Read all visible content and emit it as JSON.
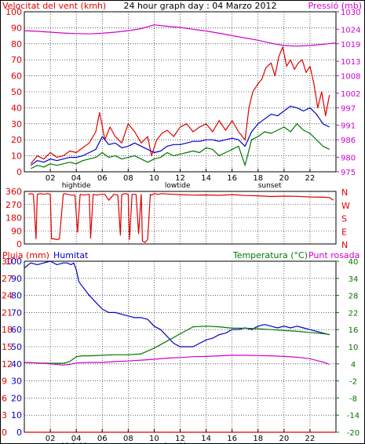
{
  "page": {
    "title": "24 hour graph day : 04 Marzo 2012"
  },
  "colors": {
    "wind": "#e00000",
    "windavg": "#0000c8",
    "windlow": "#007800",
    "pressure": "#d000d0",
    "grid": "#000000",
    "axis_left": "#e00000",
    "dir": "#e00000",
    "hum": "#0000c8",
    "temp": "#007800",
    "dew": "#d000d0",
    "rain": "#e00000"
  },
  "chart_data": [
    {
      "type": "line",
      "title": "24 hour graph day : 04 Marzo 2012",
      "ylabel_left": "Velocitat del vent (kmh)",
      "ylabel_right": "Pressió (mb)",
      "ylim_left": [
        0,
        100
      ],
      "yticks_left": [
        0,
        10,
        20,
        30,
        40,
        50,
        60,
        70,
        80,
        90,
        100
      ],
      "ylim_right": [
        975,
        1030
      ],
      "yticks_right": [
        975,
        980,
        986,
        991,
        997,
        1002,
        1008,
        1013,
        1019,
        1024,
        1030
      ],
      "xlim": [
        0,
        24
      ],
      "xticks": [
        "02",
        "04",
        "06",
        "08",
        "10",
        "12",
        "14",
        "16",
        "18",
        "20",
        "22"
      ],
      "xtick_positions": [
        2,
        4,
        6,
        8,
        10,
        12,
        14,
        16,
        18,
        20,
        22
      ],
      "x_annotations": [
        {
          "label": "hightide",
          "x": 4
        },
        {
          "label": "lowtide",
          "x": 11.8
        },
        {
          "label": "sunset",
          "x": 18.9
        }
      ],
      "series": [
        {
          "key": "wind",
          "x": [
            0.5,
            1,
            1.5,
            2,
            2.5,
            3,
            3.5,
            4,
            4.5,
            5,
            5.5,
            5.8,
            6.2,
            6.6,
            7,
            7.5,
            8,
            8.5,
            9,
            9.5,
            9.8,
            10.2,
            10.6,
            11,
            11.5,
            12,
            12.5,
            13,
            13.5,
            14,
            14.5,
            15,
            15.5,
            16,
            16.5,
            17,
            17.3,
            17.6,
            18,
            18.3,
            18.6,
            19,
            19.3,
            19.6,
            19.9,
            20.2,
            20.5,
            20.8,
            21.1,
            21.4,
            21.7,
            22,
            22.3,
            22.6,
            22.9,
            23.2,
            23.5
          ],
          "values": [
            5,
            10,
            8,
            12,
            9,
            10,
            13,
            12,
            15,
            18,
            25,
            37,
            20,
            28,
            22,
            18,
            30,
            25,
            18,
            22,
            10,
            20,
            24,
            26,
            22,
            28,
            30,
            25,
            28,
            30,
            25,
            32,
            26,
            32,
            25,
            20,
            40,
            50,
            55,
            58,
            65,
            68,
            60,
            72,
            78,
            66,
            70,
            64,
            68,
            70,
            62,
            66,
            55,
            40,
            50,
            35,
            48
          ]
        },
        {
          "key": "windavg",
          "x": [
            0.5,
            1,
            1.5,
            2,
            2.5,
            3,
            3.5,
            4,
            4.5,
            5,
            5.5,
            6,
            6.5,
            7,
            7.5,
            8,
            8.5,
            9,
            9.5,
            10,
            10.5,
            11,
            11.5,
            12,
            12.5,
            13,
            13.5,
            14,
            14.5,
            15,
            15.5,
            16,
            16.5,
            17,
            17.5,
            18,
            18.5,
            19,
            19.5,
            20,
            20.5,
            21,
            21.5,
            22,
            22.5,
            23,
            23.5
          ],
          "values": [
            4,
            7,
            6,
            8,
            7,
            8,
            9,
            9,
            10,
            12,
            14,
            22,
            17,
            18,
            15,
            16,
            18,
            16,
            14,
            12,
            13,
            16,
            17,
            17,
            18,
            19,
            19,
            20,
            20,
            19,
            20,
            21,
            20,
            16,
            25,
            30,
            33,
            36,
            35,
            38,
            41,
            40,
            38,
            40,
            36,
            30,
            28
          ]
        },
        {
          "key": "windlow",
          "x": [
            0.5,
            1,
            1.5,
            2,
            2.5,
            3,
            3.5,
            4,
            4.5,
            5,
            5.5,
            6,
            6.5,
            7,
            7.5,
            8,
            8.5,
            9,
            9.5,
            10,
            10.5,
            11,
            11.5,
            12,
            12.5,
            13,
            13.5,
            14,
            14.5,
            15,
            15.5,
            16,
            16.5,
            17,
            17.5,
            18,
            18.5,
            19,
            19.5,
            20,
            20.5,
            21,
            21.5,
            22,
            22.5,
            23,
            23.5
          ],
          "values": [
            2,
            4,
            3,
            5,
            4,
            5,
            6,
            5,
            7,
            8,
            9,
            12,
            9,
            10,
            8,
            9,
            10,
            8,
            6,
            8,
            9,
            12,
            10,
            11,
            12,
            13,
            12,
            15,
            14,
            10,
            12,
            14,
            16,
            4,
            20,
            22,
            25,
            24,
            26,
            28,
            25,
            30,
            26,
            24,
            20,
            16,
            14
          ]
        },
        {
          "key": "pressure",
          "x": [
            0,
            1,
            2,
            3,
            4,
            5,
            6,
            7,
            8,
            9,
            10,
            11,
            12,
            13,
            14,
            15,
            16,
            17,
            18,
            19,
            20,
            21,
            22,
            23,
            24
          ],
          "values": [
            1023.5,
            1023.3,
            1023.0,
            1022.7,
            1022.5,
            1022.4,
            1022.6,
            1023.0,
            1023.5,
            1024.2,
            1025.5,
            1025.0,
            1024.6,
            1024.0,
            1023.4,
            1022.6,
            1021.8,
            1021.0,
            1020.2,
            1019.2,
            1018.4,
            1018.2,
            1018.4,
            1018.8,
            1019.3
          ]
        }
      ]
    },
    {
      "type": "line",
      "ylabel_right_letters": [
        "N",
        "W",
        "S",
        "E",
        "N"
      ],
      "ylim": [
        0,
        360
      ],
      "yticks": [
        0,
        90,
        180,
        270,
        360
      ],
      "series": [
        {
          "key": "dir",
          "x": [
            0.3,
            0.5,
            0.7,
            0.9,
            1.0,
            1.2,
            1.5,
            1.8,
            2.0,
            2.1,
            2.3,
            2.5,
            2.7,
            3.0,
            3.1,
            3.3,
            3.6,
            3.9,
            4.1,
            4.3,
            4.6,
            5.0,
            5.1,
            5.3,
            5.6,
            5.9,
            6.2,
            6.5,
            6.9,
            7.2,
            7.4,
            7.5,
            7.8,
            8.0,
            8.1,
            8.3,
            8.6,
            8.8,
            9.0,
            9.1,
            9.3,
            9.5,
            9.7,
            9.8,
            10.0,
            10.3,
            10.6,
            11,
            12,
            13,
            14,
            15,
            16,
            17,
            18,
            19,
            20,
            21,
            22,
            23,
            23.5,
            23.8
          ],
          "values": [
            340,
            345,
            340,
            35,
            340,
            345,
            340,
            345,
            340,
            35,
            35,
            30,
            35,
            340,
            345,
            340,
            335,
            335,
            80,
            340,
            335,
            340,
            40,
            340,
            335,
            340,
            340,
            300,
            340,
            335,
            60,
            340,
            345,
            340,
            30,
            340,
            340,
            70,
            340,
            20,
            10,
            30,
            340,
            335,
            345,
            340,
            345,
            342,
            338,
            335,
            336,
            333,
            338,
            332,
            330,
            325,
            328,
            326,
            322,
            320,
            318,
            300
          ]
        }
      ]
    },
    {
      "type": "line",
      "ylabel_left": "Pluja (mm)",
      "ylabel_left2": "Humitat",
      "ylabel_right": "Temperatura (°C)",
      "ylabel_right2": "Punt rosada",
      "ylim_hum": [
        0,
        100
      ],
      "yticks_hum": [
        0,
        10,
        20,
        30,
        40,
        50,
        60,
        70,
        80,
        90,
        100
      ],
      "ylim_rain": [
        0,
        30
      ],
      "yticks_rain": [
        0,
        3,
        6,
        9,
        12,
        15,
        18,
        21,
        24,
        27,
        30
      ],
      "ylim_temp": [
        -20,
        40
      ],
      "yticks_temp": [
        -20,
        -14,
        -8,
        -2,
        4,
        10,
        16,
        22,
        28,
        34,
        40
      ],
      "series": [
        {
          "key": "hum",
          "x": [
            0,
            0.3,
            0.5,
            1,
            1.5,
            2,
            2.5,
            3,
            3.3,
            3.6,
            3.8,
            4.0,
            4.2,
            4.5,
            5,
            5.5,
            6,
            6.5,
            7,
            7.5,
            8,
            8.5,
            9,
            9.5,
            10,
            10.5,
            11,
            11.5,
            12,
            12.5,
            13,
            13.5,
            14,
            14.5,
            15,
            15.5,
            16,
            16.5,
            17,
            17.5,
            18,
            18.5,
            19,
            19.5,
            20,
            20.5,
            21,
            21.5,
            22,
            22.5,
            23,
            23.5
          ],
          "values": [
            96,
            98,
            99,
            98,
            99,
            100,
            98,
            99,
            99,
            98,
            99,
            95,
            88,
            85,
            80,
            76,
            72,
            70,
            70,
            69,
            68,
            67,
            67,
            66,
            62,
            60,
            56,
            52,
            50,
            50,
            50,
            52,
            54,
            55,
            57,
            58,
            60,
            60,
            61,
            60,
            62,
            63,
            62,
            61,
            62,
            61,
            62,
            61,
            60,
            59,
            58,
            57
          ]
        },
        {
          "key": "temp",
          "x": [
            0,
            1,
            2,
            3,
            3.5,
            4,
            4.5,
            5,
            6,
            7,
            8,
            9,
            10,
            11,
            12,
            13,
            14,
            15,
            16,
            17,
            18,
            19,
            20,
            21,
            22,
            23,
            23.5
          ],
          "values": [
            4.5,
            4.3,
            4.2,
            4.2,
            4.8,
            6.5,
            6.8,
            6.8,
            7.0,
            7.2,
            7.2,
            7.5,
            9.5,
            12,
            14.5,
            17,
            17.2,
            17,
            16.5,
            16.5,
            16.3,
            16.0,
            15.7,
            15.4,
            15.0,
            14.6,
            14.3
          ]
        },
        {
          "key": "dew",
          "x": [
            0,
            1,
            2,
            3,
            3.5,
            4,
            4.5,
            5,
            6,
            7,
            8,
            9,
            10,
            11,
            12,
            13,
            14,
            15,
            16,
            17,
            18,
            19,
            20,
            21,
            22,
            23,
            23.5
          ],
          "values": [
            4.5,
            4.3,
            4.0,
            3.6,
            3.8,
            4.3,
            4.4,
            4.5,
            4.5,
            4.8,
            5.0,
            5.3,
            5.6,
            6.0,
            6.2,
            6.5,
            6.6,
            6.8,
            7.0,
            7.0,
            6.9,
            6.8,
            6.6,
            6.3,
            5.8,
            4.6,
            3.8
          ]
        },
        {
          "key": "rain",
          "x": [
            0,
            24
          ],
          "values": [
            0,
            0
          ]
        }
      ]
    }
  ]
}
